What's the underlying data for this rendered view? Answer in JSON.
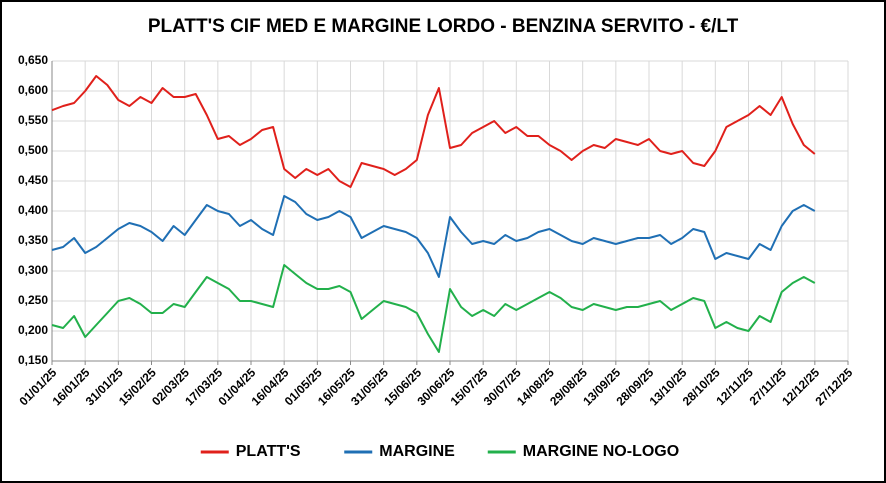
{
  "chart_data": {
    "type": "line",
    "title": "PLATT'S CIF MED E MARGINE LORDO - BENZINA SERVITO - €/LT",
    "x": [
      "01/01/25",
      "06/01/25",
      "11/01/25",
      "16/01/25",
      "21/01/25",
      "26/01/25",
      "31/01/25",
      "05/02/25",
      "10/02/25",
      "15/02/25",
      "20/02/25",
      "25/02/25",
      "02/03/25",
      "07/03/25",
      "12/03/25",
      "17/03/25",
      "22/03/25",
      "27/03/25",
      "01/04/25",
      "06/04/25",
      "11/04/25",
      "16/04/25",
      "21/04/25",
      "26/04/25",
      "01/05/25",
      "06/05/25",
      "11/05/25",
      "16/05/25",
      "21/05/25",
      "26/05/25",
      "31/05/25",
      "05/06/25",
      "10/06/25",
      "15/06/25",
      "20/06/25",
      "25/06/25",
      "30/06/25",
      "05/07/25",
      "10/07/25",
      "15/07/25",
      "20/07/25",
      "25/07/25",
      "30/07/25",
      "04/08/25",
      "09/08/25",
      "14/08/25",
      "19/08/25",
      "24/08/25",
      "29/08/25",
      "03/09/25",
      "08/09/25",
      "13/09/25",
      "18/09/25",
      "23/09/25",
      "28/09/25",
      "03/10/25",
      "08/10/25",
      "13/10/25",
      "18/10/25",
      "23/10/25",
      "28/10/25",
      "02/11/25",
      "07/11/25",
      "12/11/25",
      "17/11/25",
      "22/11/25",
      "27/11/25",
      "02/12/25",
      "07/12/25",
      "12/12/25"
    ],
    "series": [
      {
        "name": "PLATT'S",
        "color": "#e0201b",
        "values": [
          0.568,
          0.575,
          0.58,
          0.6,
          0.625,
          0.61,
          0.585,
          0.575,
          0.59,
          0.58,
          0.605,
          0.59,
          0.59,
          0.595,
          0.56,
          0.52,
          0.525,
          0.51,
          0.52,
          0.535,
          0.54,
          0.47,
          0.455,
          0.47,
          0.46,
          0.47,
          0.45,
          0.44,
          0.48,
          0.475,
          0.47,
          0.46,
          0.47,
          0.485,
          0.56,
          0.605,
          0.505,
          0.51,
          0.53,
          0.54,
          0.55,
          0.53,
          0.54,
          0.525,
          0.525,
          0.51,
          0.5,
          0.485,
          0.5,
          0.51,
          0.505,
          0.52,
          0.515,
          0.51,
          0.52,
          0.5,
          0.495,
          0.5,
          0.48,
          0.475,
          0.5,
          0.54,
          0.55,
          0.56,
          0.575,
          0.56,
          0.59,
          0.545,
          0.51,
          0.495
        ]
      },
      {
        "name": "MARGINE",
        "color": "#1f6fb4",
        "values": [
          0.335,
          0.34,
          0.355,
          0.33,
          0.34,
          0.355,
          0.37,
          0.38,
          0.375,
          0.365,
          0.35,
          0.375,
          0.36,
          0.385,
          0.41,
          0.4,
          0.395,
          0.375,
          0.385,
          0.37,
          0.36,
          0.425,
          0.415,
          0.395,
          0.385,
          0.39,
          0.4,
          0.39,
          0.355,
          0.365,
          0.375,
          0.37,
          0.365,
          0.355,
          0.33,
          0.29,
          0.39,
          0.365,
          0.345,
          0.35,
          0.345,
          0.36,
          0.35,
          0.355,
          0.365,
          0.37,
          0.36,
          0.35,
          0.345,
          0.355,
          0.35,
          0.345,
          0.35,
          0.355,
          0.355,
          0.36,
          0.345,
          0.355,
          0.37,
          0.365,
          0.32,
          0.33,
          0.325,
          0.32,
          0.345,
          0.335,
          0.375,
          0.4,
          0.41,
          0.4
        ]
      },
      {
        "name": "MARGINE NO-LOGO",
        "color": "#22b04b",
        "values": [
          0.21,
          0.205,
          0.225,
          0.19,
          0.21,
          0.23,
          0.25,
          0.255,
          0.245,
          0.23,
          0.23,
          0.245,
          0.24,
          0.265,
          0.29,
          0.28,
          0.27,
          0.25,
          0.25,
          0.245,
          0.24,
          0.31,
          0.295,
          0.28,
          0.27,
          0.27,
          0.275,
          0.265,
          0.22,
          0.235,
          0.25,
          0.245,
          0.24,
          0.23,
          0.195,
          0.165,
          0.27,
          0.24,
          0.225,
          0.235,
          0.225,
          0.245,
          0.235,
          0.245,
          0.255,
          0.265,
          0.255,
          0.24,
          0.235,
          0.245,
          0.24,
          0.235,
          0.24,
          0.24,
          0.245,
          0.25,
          0.235,
          0.245,
          0.255,
          0.25,
          0.205,
          0.215,
          0.205,
          0.2,
          0.225,
          0.215,
          0.265,
          0.28,
          0.29,
          0.28
        ]
      }
    ],
    "xlim": [
      "01/01/25",
      "27/12/25"
    ],
    "xticks": [
      "01/01/25",
      "16/01/25",
      "31/01/25",
      "15/02/25",
      "02/03/25",
      "17/03/25",
      "01/04/25",
      "16/04/25",
      "01/05/25",
      "16/05/25",
      "31/05/25",
      "15/06/25",
      "30/06/25",
      "15/07/25",
      "30/07/25",
      "14/08/25",
      "29/08/25",
      "13/09/25",
      "28/09/25",
      "13/10/25",
      "28/10/25",
      "12/11/25",
      "27/11/25",
      "12/12/25",
      "27/12/25"
    ],
    "ylim": [
      0.15,
      0.65
    ],
    "yticks": [
      {
        "value": 0.15,
        "label": "0,150"
      },
      {
        "value": 0.2,
        "label": "0,200"
      },
      {
        "value": 0.25,
        "label": "0,250"
      },
      {
        "value": 0.3,
        "label": "0,300"
      },
      {
        "value": 0.35,
        "label": "0,350"
      },
      {
        "value": 0.4,
        "label": "0,400"
      },
      {
        "value": 0.45,
        "label": "0,450"
      },
      {
        "value": 0.5,
        "label": "0,500"
      },
      {
        "value": 0.55,
        "label": "0,550"
      },
      {
        "value": 0.6,
        "label": "0,600"
      },
      {
        "value": 0.65,
        "label": "0,650"
      }
    ],
    "grid": true,
    "legend": "bottom"
  }
}
